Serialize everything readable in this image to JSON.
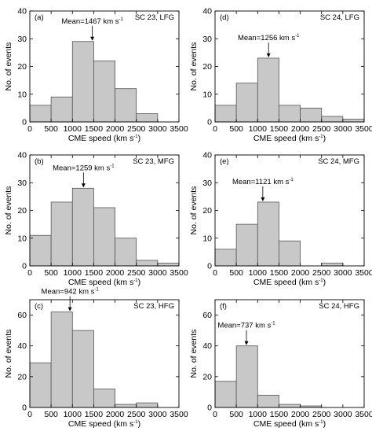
{
  "colors": {
    "bar_fill": "#c8c8c8",
    "bar_stroke": "#555555",
    "axis": "#000000"
  },
  "chart_data": [
    {
      "type": "bar",
      "panel_label": "(a)",
      "title": "SC 23, LFG",
      "xlabel": "CME speed (km s",
      "xlabel_sup": "-1",
      "xlabel_close": ")",
      "ylabel": "No. of events",
      "bin_edges": [
        0,
        500,
        1000,
        1500,
        2000,
        2500,
        3000,
        3500
      ],
      "values": [
        6,
        9,
        29,
        22,
        12,
        3,
        0
      ],
      "xlim": [
        0,
        3500
      ],
      "ylim": [
        0,
        40
      ],
      "yticks": [
        0,
        10,
        20,
        30,
        40
      ],
      "xticks": [
        0,
        500,
        1000,
        1500,
        2000,
        2500,
        3000,
        3500
      ],
      "mean": 1467,
      "mean_text": "Mean=1467 km s",
      "mean_sup": "-1"
    },
    {
      "type": "bar",
      "panel_label": "(d)",
      "title": "SC 24, LFG",
      "xlabel": "CME speed (km s",
      "xlabel_sup": "-1",
      "xlabel_close": ")",
      "ylabel": "No. of events",
      "bin_edges": [
        0,
        500,
        1000,
        1500,
        2000,
        2500,
        3000,
        3500
      ],
      "values": [
        6,
        14,
        23,
        6,
        5,
        2,
        1
      ],
      "xlim": [
        0,
        3500
      ],
      "ylim": [
        0,
        40
      ],
      "yticks": [
        0,
        10,
        20,
        30,
        40
      ],
      "xticks": [
        0,
        500,
        1000,
        1500,
        2000,
        2500,
        3000,
        3500
      ],
      "mean": 1256,
      "mean_text": "Mean=1256 km s",
      "mean_sup": "-1"
    },
    {
      "type": "bar",
      "panel_label": "(b)",
      "title": "SC 23, MFG",
      "xlabel": "CME speed (km s",
      "xlabel_sup": "-1",
      "xlabel_close": ")",
      "ylabel": "No. of events",
      "bin_edges": [
        0,
        500,
        1000,
        1500,
        2000,
        2500,
        3000,
        3500
      ],
      "values": [
        11,
        23,
        28,
        21,
        10,
        2,
        1
      ],
      "xlim": [
        0,
        3500
      ],
      "ylim": [
        0,
        40
      ],
      "yticks": [
        0,
        10,
        20,
        30,
        40
      ],
      "xticks": [
        0,
        500,
        1000,
        1500,
        2000,
        2500,
        3000,
        3500
      ],
      "mean": 1259,
      "mean_text": "Mean=1259 km s",
      "mean_sup": "-1"
    },
    {
      "type": "bar",
      "panel_label": "(e)",
      "title": "SC 24, MFG",
      "xlabel": "CME speed (km s",
      "xlabel_sup": "-1",
      "xlabel_close": ")",
      "ylabel": "No. of events",
      "bin_edges": [
        0,
        500,
        1000,
        1500,
        2000,
        2500,
        3000,
        3500
      ],
      "values": [
        6,
        15,
        23,
        9,
        0,
        1,
        0
      ],
      "xlim": [
        0,
        3500
      ],
      "ylim": [
        0,
        40
      ],
      "yticks": [
        0,
        10,
        20,
        30,
        40
      ],
      "xticks": [
        0,
        500,
        1000,
        1500,
        2000,
        2500,
        3000,
        3500
      ],
      "mean": 1121,
      "mean_text": "Mean=1121 km s",
      "mean_sup": "-1"
    },
    {
      "type": "bar",
      "panel_label": "(c)",
      "title": "SC 23, HFG",
      "xlabel": "CME speed (km s",
      "xlabel_sup": "-1",
      "xlabel_close": ")",
      "ylabel": "No. of events",
      "bin_edges": [
        0,
        500,
        1000,
        1500,
        2000,
        2500,
        3000,
        3500
      ],
      "values": [
        29,
        62,
        50,
        12,
        2,
        3,
        0
      ],
      "xlim": [
        0,
        3500
      ],
      "ylim": [
        0,
        70
      ],
      "yticks": [
        0,
        20,
        40,
        60
      ],
      "xticks": [
        0,
        500,
        1000,
        1500,
        2000,
        2500,
        3000,
        3500
      ],
      "mean": 942,
      "mean_text": "Mean=942 km s",
      "mean_sup": "-1"
    },
    {
      "type": "bar",
      "panel_label": "(f)",
      "title": "SC 24, HFG",
      "xlabel": "CME speed (km s",
      "xlabel_sup": "-1",
      "xlabel_close": ")",
      "ylabel": "No. of events",
      "bin_edges": [
        0,
        500,
        1000,
        1500,
        2000,
        2500,
        3000,
        3500
      ],
      "values": [
        17,
        40,
        8,
        2,
        1,
        0,
        0
      ],
      "xlim": [
        0,
        3500
      ],
      "ylim": [
        0,
        70
      ],
      "yticks": [
        0,
        20,
        40,
        60
      ],
      "xticks": [
        0,
        500,
        1000,
        1500,
        2000,
        2500,
        3000,
        3500
      ],
      "mean": 737,
      "mean_text": "Mean=737 km s",
      "mean_sup": "-1"
    }
  ]
}
